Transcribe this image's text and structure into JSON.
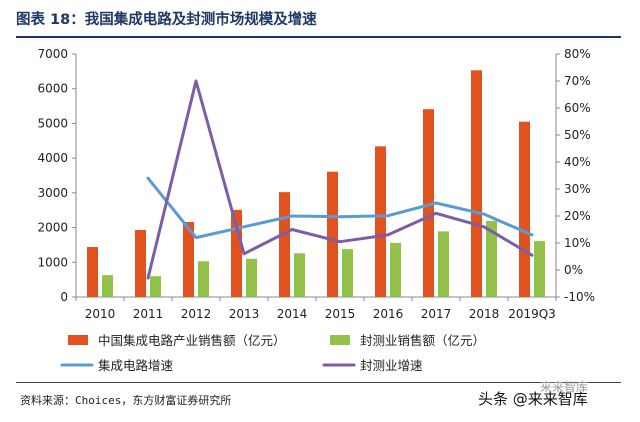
{
  "title": "图表 18：我国集成电路及封测市场规模及增速",
  "source": "资料来源：Choices，东方财富证券研究所",
  "watermark": "头条 @来来智库",
  "watermark_mark": "来来智库",
  "colors": {
    "ic_sales": "#e2521e",
    "packaging_sales": "#92c24a",
    "ic_growth": "#5b9bd5",
    "packaging_growth": "#7b5ea7",
    "title": "#1f3864"
  },
  "chart_data": {
    "type": "bar",
    "categories": [
      "2010",
      "2011",
      "2012",
      "2013",
      "2014",
      "2015",
      "2016",
      "2017",
      "2018",
      "2019Q3"
    ],
    "series": [
      {
        "name": "中国集成电路产业销售额（亿元）",
        "kind": "bar",
        "axis": "left",
        "values": [
          1440,
          1930,
          2160,
          2510,
          3020,
          3610,
          4340,
          5410,
          6530,
          5050
        ]
      },
      {
        "name": "封测业销售额（亿元）",
        "kind": "bar",
        "axis": "left",
        "values": [
          630,
          600,
          1030,
          1100,
          1260,
          1380,
          1560,
          1890,
          2190,
          1610
        ]
      },
      {
        "name": "集成电路增速",
        "kind": "line",
        "axis": "right",
        "values": [
          null,
          34,
          12,
          16,
          20,
          19.7,
          20.1,
          24.8,
          20.7,
          13
        ]
      },
      {
        "name": "封测业增速",
        "kind": "line",
        "axis": "right",
        "values": [
          null,
          -3,
          70,
          6,
          15,
          10.5,
          13,
          21,
          16,
          5.5
        ]
      }
    ],
    "yleft_ticks": [
      "0",
      "1000",
      "2000",
      "3000",
      "4000",
      "5000",
      "6000",
      "7000"
    ],
    "yleft_lim": [
      0,
      7000
    ],
    "yright_ticks": [
      "-10%",
      "0%",
      "10%",
      "20%",
      "30%",
      "40%",
      "50%",
      "60%",
      "70%",
      "80%"
    ],
    "yright_lim": [
      -10,
      80
    ],
    "grid": false,
    "legend_position": "bottom"
  }
}
